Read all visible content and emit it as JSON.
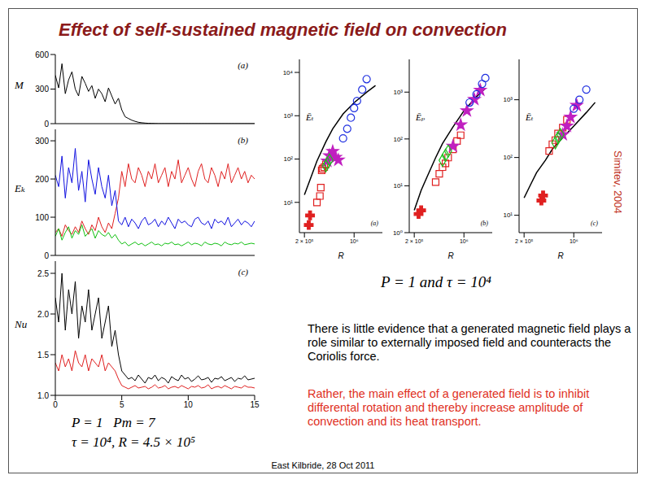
{
  "title": "Effect of self-sustained magnetic field on convection",
  "annotations": [
    {
      "text": "P = 1 and τ = 10⁴"
    },
    {
      "text": "P = 1   Pm = 7"
    },
    {
      "text": "τ = 10⁴, R = 4.5 × 10⁵"
    },
    {
      "text": "Simitev, 2004"
    },
    {
      "text": "There is little evidence that a generated magnetic field plays a role similar to externally imposed field and counteracts the Coriolis force."
    },
    {
      "text": "Rather, the main effect of a generated field is to inhibit differental rotation and thereby increase amplitude of convection and its heat transport."
    },
    {
      "text": "East Kilbride, 28 Oct 2011"
    }
  ],
  "chart_data": [
    {
      "type": "line",
      "ylabel": "M",
      "annotations": [
        "(a)"
      ],
      "tick_labels": "y",
      "x": [
        0,
        0.25,
        0.5,
        0.75,
        1,
        1.25,
        1.5,
        1.75,
        2,
        2.25,
        2.5,
        2.75,
        3,
        3.25,
        3.5,
        3.75,
        4,
        4.25,
        4.5,
        4.75,
        5,
        5.25,
        5.5,
        5.75,
        6,
        6.25,
        6.5,
        6.75,
        7,
        7.25,
        7.5,
        7.75,
        8,
        8.25,
        8.5,
        8.75,
        9,
        9.25,
        9.5,
        9.75,
        10,
        10.25,
        10.5,
        10.75,
        11,
        11.25,
        11.5,
        11.75,
        12,
        12.25,
        12.5,
        12.75,
        13,
        13.25,
        13.5,
        13.75,
        14,
        14.25,
        14.5,
        14.75,
        15
      ],
      "xlim": [
        0,
        15
      ],
      "xticks": [
        0,
        5,
        10,
        15
      ],
      "ylim": [
        0,
        600
      ],
      "yticks": [
        0,
        300,
        600
      ],
      "series": [
        {
          "color": "#000000",
          "values": [
            420,
            310,
            520,
            260,
            380,
            450,
            300,
            240,
            410,
            350,
            280,
            330,
            220,
            300,
            260,
            190,
            310,
            240,
            170,
            220,
            120,
            60,
            45,
            30,
            20,
            12,
            8,
            5,
            3,
            2,
            1,
            0,
            0,
            0,
            0,
            0,
            0,
            0,
            0,
            0,
            0,
            0,
            0,
            0,
            0,
            0,
            0,
            0,
            0,
            0,
            0,
            0,
            0,
            0,
            0,
            0,
            0,
            0,
            0,
            0,
            0
          ]
        }
      ]
    },
    {
      "type": "line",
      "ylabel": "Eₖ",
      "annotations": [
        "(b)"
      ],
      "tick_labels": "y",
      "x": [
        0,
        0.25,
        0.5,
        0.75,
        1,
        1.25,
        1.5,
        1.75,
        2,
        2.25,
        2.5,
        2.75,
        3,
        3.25,
        3.5,
        3.75,
        4,
        4.25,
        4.5,
        4.75,
        5,
        5.25,
        5.5,
        5.75,
        6,
        6.25,
        6.5,
        6.75,
        7,
        7.25,
        7.5,
        7.75,
        8,
        8.25,
        8.5,
        8.75,
        9,
        9.25,
        9.5,
        9.75,
        10,
        10.25,
        10.5,
        10.75,
        11,
        11.25,
        11.5,
        11.75,
        12,
        12.25,
        12.5,
        12.75,
        13,
        13.25,
        13.5,
        13.75,
        14,
        14.25,
        14.5,
        14.75,
        15
      ],
      "xlim": [
        0,
        15
      ],
      "xticks": [
        0,
        5,
        10,
        15
      ],
      "ylim": [
        0,
        330
      ],
      "yticks": [
        0,
        100,
        200,
        300
      ],
      "series": [
        {
          "color": "#e02020",
          "values": [
            60,
            70,
            50,
            80,
            65,
            55,
            75,
            60,
            90,
            70,
            55,
            80,
            65,
            100,
            75,
            60,
            85,
            70,
            110,
            150,
            220,
            180,
            240,
            200,
            190,
            230,
            210,
            180,
            220,
            200,
            240,
            190,
            210,
            230,
            180,
            220,
            200,
            250,
            190,
            210,
            230,
            200,
            180,
            220,
            240,
            200,
            190,
            230,
            210,
            180,
            220,
            200,
            240,
            190,
            210,
            230,
            200,
            220,
            190,
            210,
            200
          ]
        },
        {
          "color": "#1010e0",
          "values": [
            210,
            180,
            260,
            150,
            230,
            190,
            280,
            170,
            220,
            140,
            250,
            200,
            160,
            230,
            180,
            150,
            210,
            130,
            170,
            90,
            80,
            100,
            75,
            95,
            85,
            70,
            90,
            100,
            80,
            85,
            95,
            75,
            90,
            80,
            100,
            85,
            70,
            95,
            85,
            90,
            80,
            75,
            95,
            100,
            85,
            80,
            90,
            70,
            95,
            85,
            90,
            80,
            100,
            75,
            85,
            95,
            80,
            90,
            85,
            75,
            90
          ]
        },
        {
          "color": "#10c010",
          "values": [
            50,
            70,
            40,
            60,
            75,
            45,
            65,
            55,
            80,
            50,
            60,
            70,
            45,
            65,
            55,
            50,
            60,
            45,
            55,
            40,
            30,
            35,
            25,
            30,
            35,
            28,
            32,
            25,
            30,
            35,
            28,
            30,
            25,
            32,
            30,
            35,
            28,
            30,
            25,
            30,
            35,
            28,
            32,
            30,
            25,
            35,
            30,
            28,
            32,
            30,
            25,
            35,
            30,
            28,
            32,
            30,
            35,
            28,
            30,
            32,
            30
          ]
        }
      ]
    },
    {
      "type": "line",
      "ylabel": "Nu",
      "annotations": [
        "(c)"
      ],
      "x": [
        0,
        0.25,
        0.5,
        0.75,
        1,
        1.25,
        1.5,
        1.75,
        2,
        2.25,
        2.5,
        2.75,
        3,
        3.25,
        3.5,
        3.75,
        4,
        4.25,
        4.5,
        4.75,
        5,
        5.25,
        5.5,
        5.75,
        6,
        6.25,
        6.5,
        6.75,
        7,
        7.25,
        7.5,
        7.75,
        8,
        8.25,
        8.5,
        8.75,
        9,
        9.25,
        9.5,
        9.75,
        10,
        10.25,
        10.5,
        10.75,
        11,
        11.25,
        11.5,
        11.75,
        12,
        12.25,
        12.5,
        12.75,
        13,
        13.25,
        13.5,
        13.75,
        14,
        14.25,
        14.5,
        14.75,
        15
      ],
      "xlim": [
        0,
        15
      ],
      "xticks": [
        0,
        5,
        10,
        15
      ],
      "ylim": [
        1,
        2.65
      ],
      "yticks": [
        {
          "value": 1,
          "label": "1.0"
        },
        1.5,
        {
          "value": 2,
          "label": "2.0"
        },
        2.5
      ],
      "series": [
        {
          "color": "#000000",
          "values": [
            2.2,
            1.9,
            2.5,
            1.8,
            2.3,
            2.0,
            2.4,
            1.7,
            2.1,
            1.9,
            2.3,
            1.8,
            2.0,
            2.2,
            1.7,
            1.9,
            2.1,
            1.6,
            1.8,
            1.5,
            1.3,
            1.25,
            1.2,
            1.22,
            1.18,
            1.25,
            1.2,
            1.15,
            1.22,
            1.2,
            1.25,
            1.18,
            1.22,
            1.2,
            1.15,
            1.23,
            1.2,
            1.18,
            1.25,
            1.2,
            1.22,
            1.17,
            1.2,
            1.24,
            1.19,
            1.2,
            1.22,
            1.16,
            1.21,
            1.2,
            1.23,
            1.18,
            1.2,
            1.22,
            1.17,
            1.21,
            1.2,
            1.24,
            1.19,
            1.2,
            1.21
          ]
        },
        {
          "color": "#e02020",
          "values": [
            1.4,
            1.3,
            1.5,
            1.35,
            1.45,
            1.3,
            1.55,
            1.4,
            1.35,
            1.5,
            1.3,
            1.45,
            1.4,
            1.35,
            1.5,
            1.3,
            1.4,
            1.35,
            1.3,
            1.2,
            1.12,
            1.1,
            1.08,
            1.1,
            1.12,
            1.09,
            1.1,
            1.11,
            1.08,
            1.1,
            1.13,
            1.09,
            1.1,
            1.12,
            1.08,
            1.1,
            1.11,
            1.09,
            1.12,
            1.1,
            1.08,
            1.11,
            1.1,
            1.12,
            1.09,
            1.1,
            1.13,
            1.08,
            1.1,
            1.11,
            1.09,
            1.12,
            1.1,
            1.08,
            1.11,
            1.1,
            1.09,
            1.12,
            1.1,
            1.1,
            1.09
          ]
        }
      ]
    },
    {
      "type": "scatter",
      "log": true,
      "xlabel": "R",
      "ylabel": "Ēₜ",
      "annotations": [
        "(a)"
      ],
      "xlim": [
        170000,
        2500000
      ],
      "xticks": [
        {
          "value": 200000,
          "label": "2 × 10⁵"
        },
        {
          "value": 1000000,
          "label": "10⁶"
        }
      ],
      "ylim": [
        2,
        20000
      ],
      "yticks": [
        {
          "value": 10,
          "label": "10¹"
        },
        {
          "value": 100,
          "label": "10²"
        },
        {
          "value": 1000,
          "label": "10³"
        },
        {
          "value": 10000,
          "label": "10⁴"
        }
      ],
      "series": [
        {
          "type": "line",
          "color": "#000000",
          "x": [
            200000,
            250000,
            300000,
            400000,
            500000,
            700000,
            1000000,
            1500000,
            2000000
          ],
          "y": [
            15,
            40,
            90,
            250,
            500,
            1100,
            2000,
            3500,
            5000
          ]
        },
        {
          "type": "scatter",
          "marker": "square",
          "color": "#e02020",
          "x": [
            300000,
            330000,
            340000,
            350000,
            360000,
            380000,
            400000
          ],
          "y": [
            10,
            14,
            22,
            55,
            60,
            65,
            75
          ]
        },
        {
          "type": "scatter",
          "marker": "plus",
          "color": "#e02020",
          "x": [
            230000,
            240000
          ],
          "y": [
            3,
            5
          ]
        },
        {
          "type": "scatter",
          "marker": "star",
          "color": "#c020c0",
          "x": [
            420000,
            450000,
            500000,
            550000,
            600000
          ],
          "y": [
            90,
            120,
            150,
            110,
            95
          ]
        },
        {
          "type": "scatter",
          "marker": "diamond",
          "color": "#20c020",
          "x": [
            400000,
            420000,
            450000
          ],
          "y": [
            70,
            80,
            95
          ]
        },
        {
          "type": "scatter",
          "marker": "circle",
          "color": "#2030e0",
          "x": [
            700000,
            800000,
            900000,
            1000000,
            1100000,
            1300000,
            1500000
          ],
          "y": [
            300,
            500,
            900,
            1500,
            2200,
            4000,
            7000
          ]
        }
      ]
    },
    {
      "type": "scatter",
      "log": true,
      "xlabel": "R",
      "ylabel": "Ēₚ",
      "annotations": [
        "(b)"
      ],
      "xlim": [
        170000,
        2500000
      ],
      "xticks": [
        {
          "value": 200000,
          "label": "2 × 10⁵"
        },
        {
          "value": 1000000,
          "label": "10⁶"
        }
      ],
      "ylim": [
        1,
        5000
      ],
      "yticks": [
        {
          "value": 1,
          "label": "10⁰"
        },
        {
          "value": 10,
          "label": "10¹"
        },
        {
          "value": 100,
          "label": "10²"
        },
        {
          "value": 1000,
          "label": "10³"
        }
      ],
      "series": [
        {
          "type": "line",
          "color": "#000000",
          "x": [
            200000,
            250000,
            300000,
            400000,
            500000,
            700000,
            1000000,
            1500000,
            2000000
          ],
          "y": [
            3,
            8,
            15,
            40,
            80,
            180,
            400,
            800,
            1200
          ]
        },
        {
          "type": "scatter",
          "marker": "square",
          "color": "#e02020",
          "x": [
            400000,
            450000,
            500000,
            550000,
            600000,
            700000,
            800000,
            900000
          ],
          "y": [
            12,
            18,
            25,
            30,
            40,
            60,
            90,
            120
          ]
        },
        {
          "type": "scatter",
          "marker": "plus",
          "color": "#e02020",
          "x": [
            230000,
            250000
          ],
          "y": [
            2.5,
            3
          ]
        },
        {
          "type": "scatter",
          "marker": "star",
          "color": "#c020c0",
          "x": [
            700000,
            900000,
            1100000,
            1400000,
            1700000
          ],
          "y": [
            70,
            200,
            400,
            700,
            1100
          ]
        },
        {
          "type": "scatter",
          "marker": "diamond",
          "color": "#20c020",
          "x": [
            500000,
            550000,
            600000
          ],
          "y": [
            35,
            45,
            55
          ]
        },
        {
          "type": "scatter",
          "marker": "circle",
          "color": "#2030e0",
          "x": [
            1200000,
            1500000,
            1800000,
            2000000
          ],
          "y": [
            600,
            900,
            1500,
            2000
          ]
        }
      ]
    },
    {
      "type": "scatter",
      "log": true,
      "xlabel": "R",
      "ylabel": "Ēₜ",
      "annotations": [
        "(c)"
      ],
      "xlim": [
        170000,
        2500000
      ],
      "xticks": [
        {
          "value": 200000,
          "label": "2 × 10⁵"
        },
        {
          "value": 1000000,
          "label": "10⁶"
        }
      ],
      "ylim": [
        5,
        5000
      ],
      "yticks": [
        {
          "value": 10,
          "label": "10¹"
        },
        {
          "value": 100,
          "label": "10²"
        },
        {
          "value": 1000,
          "label": "10³"
        }
      ],
      "series": [
        {
          "type": "line",
          "color": "#000000",
          "x": [
            200000,
            250000,
            300000,
            400000,
            500000,
            700000,
            1000000,
            1500000,
            2000000
          ],
          "y": [
            20,
            35,
            55,
            90,
            140,
            220,
            350,
            600,
            900
          ]
        },
        {
          "type": "scatter",
          "marker": "square",
          "color": "#e02020",
          "x": [
            450000,
            500000,
            550000,
            600000,
            700000,
            800000
          ],
          "y": [
            130,
            170,
            200,
            260,
            330,
            450
          ]
        },
        {
          "type": "scatter",
          "marker": "plus",
          "color": "#e02020",
          "x": [
            350000,
            370000
          ],
          "y": [
            18,
            22
          ]
        },
        {
          "type": "scatter",
          "marker": "star",
          "color": "#c020c0",
          "x": [
            700000,
            800000,
            900000,
            1100000
          ],
          "y": [
            250,
            350,
            500,
            800
          ]
        },
        {
          "type": "scatter",
          "marker": "diamond",
          "color": "#20c020",
          "x": [
            550000,
            600000,
            650000
          ],
          "y": [
            180,
            220,
            250
          ]
        },
        {
          "type": "scatter",
          "marker": "circle",
          "color": "#2030e0",
          "x": [
            1000000,
            1200000,
            1500000
          ],
          "y": [
            700,
            1000,
            1500
          ]
        }
      ]
    }
  ]
}
